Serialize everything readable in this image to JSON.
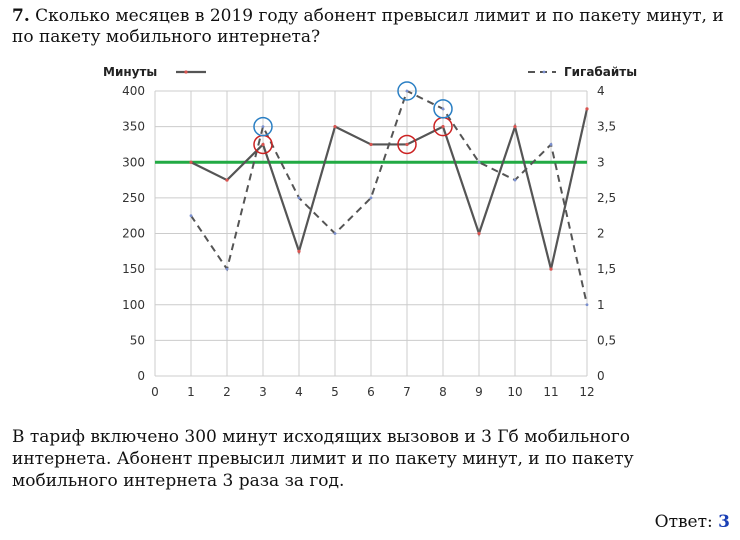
{
  "question": {
    "number": "7.",
    "text": "Сколько месяцев в 2019 году абонент превысил лимит и по пакету минут, и по пакету мобильного интернета?"
  },
  "explanation": "В тариф включено 300 минут исходящих вызовов и 3 Гб мобильного интернета. Абонент превысил лимит и по пакету минут, и по пакету мобильного интернета 3 раза за год.",
  "answer": {
    "label": "Ответ:",
    "value": "3"
  },
  "colors": {
    "minutes": "#555555",
    "gigabytes": "#555555",
    "limit": "#22aa44",
    "circle_red": "#cc2222",
    "circle_blue": "#2a7fc4",
    "grid": "#cccccc"
  },
  "chart_data": {
    "type": "line",
    "x": [
      1,
      2,
      3,
      4,
      5,
      6,
      7,
      8,
      9,
      10,
      11,
      12
    ],
    "x_ticks": [
      0,
      1,
      2,
      3,
      4,
      5,
      6,
      7,
      8,
      9,
      10,
      11,
      12
    ],
    "series": [
      {
        "name": "Минуты",
        "axis": "left",
        "style": "solid",
        "values": [
          300,
          275,
          325,
          175,
          350,
          325,
          325,
          350,
          200,
          350,
          150,
          375
        ]
      },
      {
        "name": "Гигабайты",
        "axis": "right",
        "style": "dashed",
        "values": [
          2.25,
          1.5,
          3.5,
          2.5,
          2,
          2.5,
          4,
          3.75,
          3,
          2.75,
          3.25,
          1
        ]
      }
    ],
    "y_left": {
      "range": [
        0,
        400
      ],
      "ticks": [
        "0",
        "50",
        "100",
        "150",
        "200",
        "250",
        "300",
        "350",
        "400"
      ]
    },
    "y_right": {
      "range": [
        0,
        4
      ],
      "ticks": [
        "0",
        "0,5",
        "1",
        "1,5",
        "2",
        "2,5",
        "3",
        "3,5",
        "4"
      ]
    },
    "limit_line": {
      "y": 300
    },
    "highlight_minutes_months": [
      3,
      7,
      8
    ],
    "highlight_gigabytes_months": [
      3,
      7,
      8
    ],
    "grid": true,
    "legend_placement": "top"
  }
}
